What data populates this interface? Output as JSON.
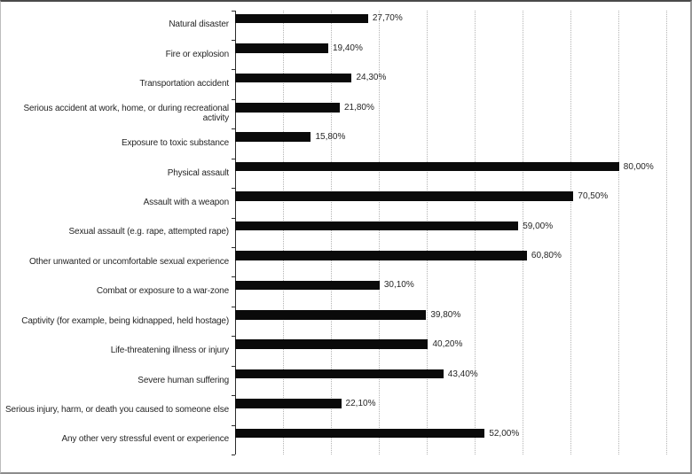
{
  "chart_data": {
    "type": "bar",
    "orientation": "horizontal",
    "title": "",
    "xlabel": "",
    "ylabel": "",
    "xlim": [
      0,
      90
    ],
    "gridline_step": 10,
    "grid": "vertical-dotted",
    "legend": "none",
    "decimal_separator": ",",
    "categories": [
      "Natural disaster",
      "Fire or explosion",
      "Transportation accident",
      "Serious accident at work, home, or during recreational activity",
      "Exposure to toxic substance",
      "Physical assault",
      "Assault with a weapon",
      "Sexual assault (e.g. rape, attempted rape)",
      "Other unwanted or uncomfortable sexual experience",
      "Combat or exposure to a war-zone",
      "Captivity (for example, being kidnapped, held hostage)",
      "Life-threatening illness or injury",
      "Severe human suffering",
      "Serious injury, harm, or death you caused to someone else",
      "Any other very stressful event or experience"
    ],
    "values": [
      27.7,
      19.4,
      24.3,
      21.8,
      15.8,
      80.0,
      70.5,
      59.0,
      60.8,
      30.1,
      39.8,
      40.2,
      43.4,
      22.1,
      52.0
    ],
    "value_labels": [
      "27,70%",
      "19,40%",
      "24,30%",
      "21,80%",
      "15,80%",
      "80,00%",
      "70,50%",
      "59,00%",
      "60,80%",
      "30,10%",
      "39,80%",
      "40,20%",
      "43,40%",
      "22,10%",
      "52,00%"
    ],
    "colors": {
      "bar": "#0a0a0a",
      "gridline": "#b4b4b4",
      "axis": "#2b2b2b",
      "text": "#262626",
      "background": "#ffffff"
    }
  }
}
